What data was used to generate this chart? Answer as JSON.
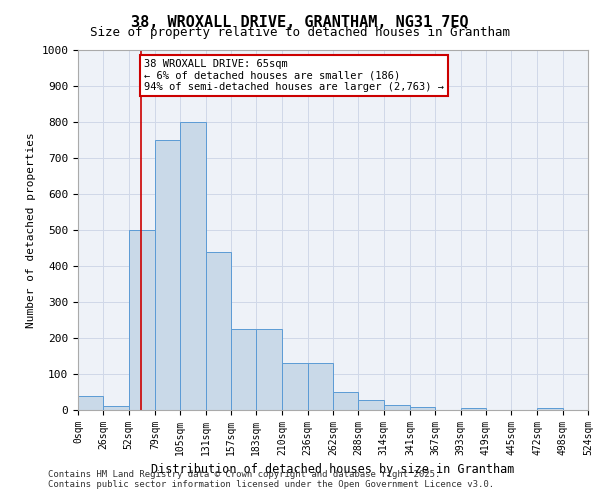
{
  "title": "38, WROXALL DRIVE, GRANTHAM, NG31 7EQ",
  "subtitle": "Size of property relative to detached houses in Grantham",
  "xlabel": "Distribution of detached houses by size in Grantham",
  "ylabel": "Number of detached properties",
  "bar_edges": [
    0,
    26,
    52,
    79,
    105,
    131,
    157,
    183,
    210,
    236,
    262,
    288,
    314,
    341,
    367,
    393,
    419,
    445,
    472,
    498,
    524
  ],
  "bar_heights": [
    40,
    10,
    500,
    750,
    800,
    440,
    225,
    225,
    130,
    130,
    50,
    27,
    15,
    8,
    0,
    5,
    0,
    0,
    5,
    0
  ],
  "bar_color": "#c9d9e8",
  "bar_edgecolor": "#5b9bd5",
  "tick_labels": [
    "0sqm",
    "26sqm",
    "52sqm",
    "79sqm",
    "105sqm",
    "131sqm",
    "157sqm",
    "183sqm",
    "210sqm",
    "236sqm",
    "262sqm",
    "288sqm",
    "314sqm",
    "341sqm",
    "367sqm",
    "393sqm",
    "419sqm",
    "445sqm",
    "472sqm",
    "498sqm",
    "524sqm"
  ],
  "ylim": [
    0,
    1000
  ],
  "yticks": [
    0,
    100,
    200,
    300,
    400,
    500,
    600,
    700,
    800,
    900,
    1000
  ],
  "redline_x": 65,
  "annotation_text": "38 WROXALL DRIVE: 65sqm\n← 6% of detached houses are smaller (186)\n94% of semi-detached houses are larger (2,763) →",
  "annotation_box_color": "#ffffff",
  "annotation_box_edgecolor": "#cc0000",
  "grid_color": "#d0d8e8",
  "background_color": "#eef2f8",
  "footer_line1": "Contains HM Land Registry data © Crown copyright and database right 2025.",
  "footer_line2": "Contains public sector information licensed under the Open Government Licence v3.0."
}
